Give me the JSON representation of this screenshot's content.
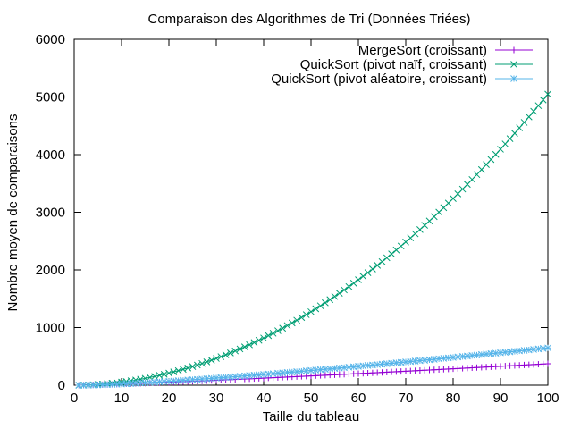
{
  "chart_data": {
    "type": "line",
    "title": "Comparaison des Algorithmes de Tri (Données Triées)",
    "xlabel": "Taille du tableau",
    "ylabel": "Nombre moyen de comparaisons",
    "xlim": [
      0,
      100
    ],
    "ylim": [
      0,
      6000
    ],
    "x_ticks": [
      0,
      10,
      20,
      30,
      40,
      50,
      60,
      70,
      80,
      90,
      100
    ],
    "y_ticks": [
      0,
      1000,
      2000,
      3000,
      4000,
      5000,
      6000
    ],
    "grid": false,
    "legend_position": "top-right",
    "x": "integers from 1 to 100",
    "series": [
      {
        "name": "MergeSort (croissant)",
        "color": "#9400d3",
        "marker": "plus",
        "sample_points": [
          [
            10,
            15
          ],
          [
            20,
            40
          ],
          [
            30,
            70
          ],
          [
            40,
            105
          ],
          [
            50,
            140
          ],
          [
            60,
            180
          ],
          [
            70,
            225
          ],
          [
            80,
            270
          ],
          [
            90,
            315
          ],
          [
            100,
            356
          ]
        ]
      },
      {
        "name": "QuickSort (pivot naïf, croissant)",
        "color": "#009e73",
        "marker": "cross",
        "sample_points": [
          [
            10,
            54
          ],
          [
            20,
            209
          ],
          [
            30,
            464
          ],
          [
            40,
            819
          ],
          [
            50,
            1274
          ],
          [
            60,
            1829
          ],
          [
            70,
            2484
          ],
          [
            80,
            3239
          ],
          [
            90,
            4094
          ],
          [
            100,
            5049
          ]
        ]
      },
      {
        "name": "QuickSort (pivot aléatoire, croissant)",
        "color": "#56b4e9",
        "marker": "asterisk",
        "sample_points": [
          [
            10,
            25
          ],
          [
            20,
            75
          ],
          [
            30,
            135
          ],
          [
            40,
            200
          ],
          [
            50,
            270
          ],
          [
            60,
            345
          ],
          [
            70,
            425
          ],
          [
            80,
            505
          ],
          [
            90,
            590
          ],
          [
            100,
            690
          ]
        ]
      }
    ]
  }
}
